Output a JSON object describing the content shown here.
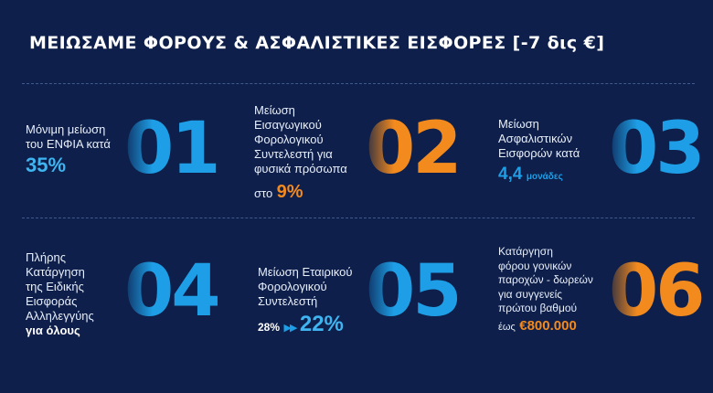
{
  "title": "ΜΕΙΩΣΑΜΕ ΦΟΡΟΥΣ & ΑΣΦΑΛΙΣΤΙΚΕΣ ΕΙΣΦΟΡΕΣ [-7 δις €]",
  "items": [
    {
      "number": "01",
      "lines": [
        "Μόνιμη μείωση",
        "του ΕΝΦΙΑ κατά"
      ],
      "highlight": "35%"
    },
    {
      "number": "02",
      "lines": [
        "Μείωση",
        "Εισαγωγικού",
        "Φορολογικού",
        "Συντελεστή για",
        "φυσικά πρόσωπα"
      ],
      "prefix": "στο",
      "highlight": "9%"
    },
    {
      "number": "03",
      "lines": [
        "Μείωση",
        "Ασφαλιστικών",
        "Εισφορών κατά"
      ],
      "highlight": "4,4",
      "unit": "μονάδες"
    },
    {
      "number": "04",
      "lines": [
        "Πλήρης",
        "Κατάργηση",
        "της Ειδικής",
        "Εισφοράς",
        "Αλληλεγγύης"
      ],
      "highlight": "για όλους"
    },
    {
      "number": "05",
      "lines": [
        "Μείωση Εταιρικού",
        "Φορολογικού",
        "Συντελεστή"
      ],
      "from": "28%",
      "arrows": "▶▶",
      "highlight": "22%"
    },
    {
      "number": "06",
      "lines": [
        "Κατάργηση",
        "φόρου γονικών",
        "παροχών - δωρεών",
        "για συγγενείς",
        "πρώτου βαθμού"
      ],
      "prefix": "έως",
      "highlight": "€800.000"
    }
  ],
  "colors": {
    "background": "#0d1f4a",
    "blue_accent": "#1e9ee6",
    "light_blue": "#3fb4f0",
    "orange_accent": "#f28a1e"
  }
}
